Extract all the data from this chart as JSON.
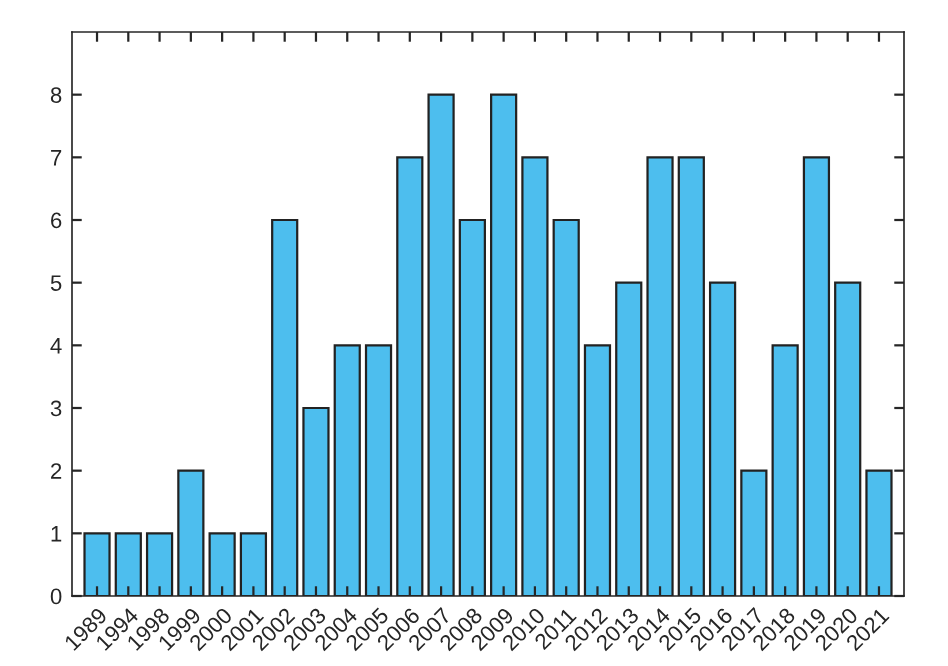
{
  "chart_data": {
    "type": "bar",
    "categories": [
      "1989",
      "1994",
      "1998",
      "1999",
      "2000",
      "2001",
      "2002",
      "2003",
      "2004",
      "2005",
      "2006",
      "2007",
      "2008",
      "2009",
      "2010",
      "2011",
      "2012",
      "2013",
      "2014",
      "2015",
      "2016",
      "2017",
      "2018",
      "2019",
      "2020",
      "2021"
    ],
    "values": [
      1,
      1,
      1,
      2,
      1,
      1,
      6,
      3,
      4,
      4,
      7,
      8,
      6,
      8,
      7,
      6,
      4,
      5,
      7,
      7,
      5,
      2,
      4,
      7,
      5,
      2
    ],
    "color": "#4dbeee",
    "ylim": [
      0,
      9
    ],
    "yticks": [
      0,
      1,
      2,
      3,
      4,
      5,
      6,
      7,
      8
    ],
    "grid": false
  }
}
